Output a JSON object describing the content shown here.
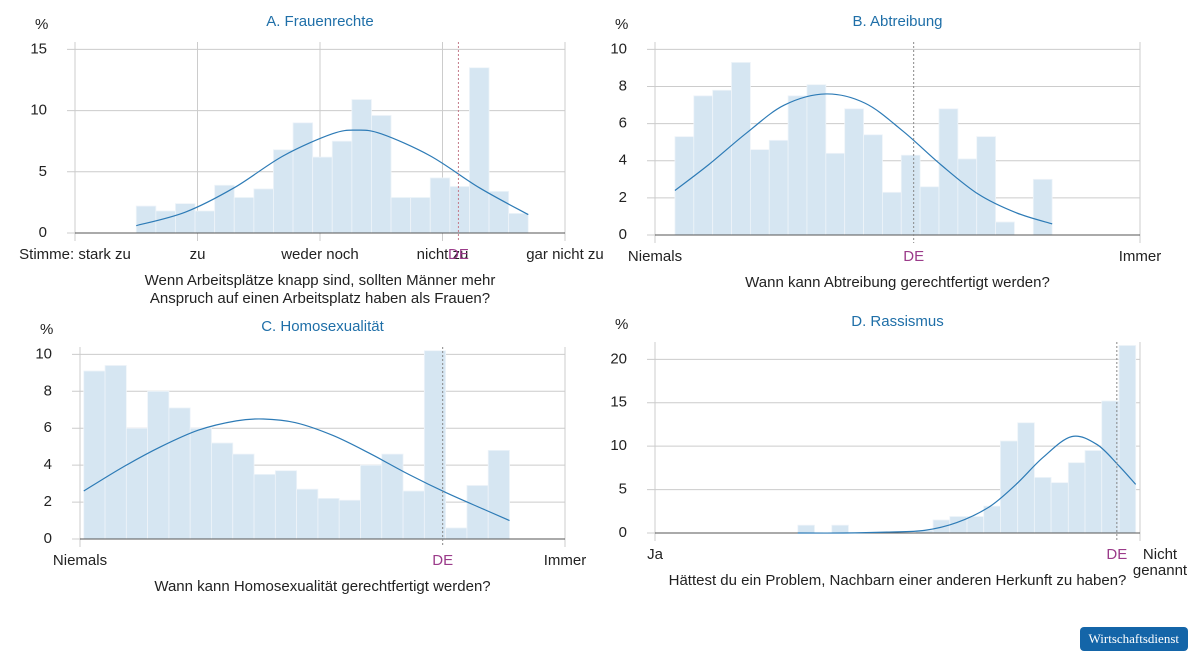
{
  "chart_data": [
    {
      "type": "histogram",
      "title": "A. Frauenrechte",
      "y_label": "%",
      "xlabel": [
        "Wenn Arbeitsplätze knapp sind, sollten Männer mehr",
        "Anspruch auf einen Arbeitsplatz haben als Frauen?"
      ],
      "xlim": [
        0,
        4
      ],
      "xticks": [
        {
          "value": 0,
          "label": "Stimme: stark zu"
        },
        {
          "value": 1,
          "label": "zu"
        },
        {
          "value": 2,
          "label": "weder noch"
        },
        {
          "value": 3,
          "label": "nicht zu"
        },
        {
          "value": 4,
          "label": "gar nicht zu"
        }
      ],
      "ylim": [
        0,
        15.6
      ],
      "yticks": [
        0,
        5,
        10,
        15
      ],
      "bins": [
        0.5,
        0.66,
        0.82,
        0.98,
        1.14,
        1.3,
        1.46,
        1.62,
        1.78,
        1.94,
        2.1,
        2.26,
        2.42,
        2.58,
        2.74,
        2.9,
        3.06,
        3.22,
        3.38,
        3.54,
        3.7
      ],
      "values": [
        2.2,
        1.8,
        2.4,
        1.8,
        3.9,
        2.9,
        3.6,
        6.8,
        9.0,
        6.2,
        7.5,
        10.9,
        9.6,
        2.9,
        2.9,
        4.5,
        3.8,
        13.5,
        3.4,
        1.6
      ],
      "curve": {
        "x": [
          0.5,
          0.9,
          1.3,
          1.7,
          2.1,
          2.3,
          2.5,
          2.9,
          3.3,
          3.7
        ],
        "values": [
          0.6,
          1.7,
          3.7,
          6.3,
          8.1,
          8.4,
          8.1,
          6.3,
          3.7,
          1.5
        ]
      },
      "marker": {
        "value": 3.13,
        "label": "DE",
        "color": "#c47a8a"
      },
      "color": "#d6e6f2",
      "curve_color": "#2d7bb6",
      "grid": true
    },
    {
      "type": "histogram",
      "title": "B. Abtreibung",
      "y_label": "%",
      "xlabel": [
        "Wann kann Abtreibung gerechtfertigt werden?"
      ],
      "xlim": [
        1,
        10
      ],
      "xticks": [
        {
          "value": 1,
          "label": "Niemals"
        },
        {
          "value": 10,
          "label": "Immer"
        }
      ],
      "ylim": [
        0,
        10.4
      ],
      "yticks": [
        0,
        2,
        4,
        6,
        8,
        10
      ],
      "bins": [
        1.37,
        1.72,
        2.07,
        2.42,
        2.77,
        3.12,
        3.47,
        3.82,
        4.17,
        4.52,
        4.87,
        5.22,
        5.57,
        5.92,
        6.27,
        6.62,
        6.97,
        7.32,
        7.67,
        8.02,
        8.37
      ],
      "values": [
        5.3,
        7.5,
        7.8,
        9.3,
        4.6,
        5.1,
        7.5,
        8.1,
        4.4,
        6.8,
        5.4,
        2.3,
        4.3,
        2.6,
        6.8,
        4.1,
        5.3,
        0.7,
        0,
        3.0
      ],
      "curve": {
        "x": [
          1.37,
          2.0,
          2.7,
          3.4,
          4.17,
          4.9,
          5.6,
          6.3,
          7.0,
          7.7,
          8.37
        ],
        "values": [
          2.4,
          3.8,
          5.5,
          7.0,
          7.6,
          7.1,
          5.6,
          3.8,
          2.2,
          1.2,
          0.6
        ]
      },
      "marker": {
        "value": 5.8,
        "label": "DE",
        "color": "#888"
      },
      "color": "#d6e6f2",
      "curve_color": "#2d7bb6",
      "grid": true
    },
    {
      "type": "histogram",
      "title": "C. Homosexualität",
      "y_label": "%",
      "xlabel": [
        "Wann kann Homosexualität gerechtfertigt werden?"
      ],
      "xlim": [
        1,
        10
      ],
      "xticks": [
        {
          "value": 1,
          "label": "Niemals"
        },
        {
          "value": 10,
          "label": "Immer"
        }
      ],
      "ylim": [
        0,
        10.4
      ],
      "yticks": [
        0,
        2,
        4,
        6,
        8,
        10
      ],
      "bins": [
        1.07,
        1.465,
        1.86,
        2.255,
        2.65,
        3.045,
        3.44,
        3.835,
        4.23,
        4.625,
        5.02,
        5.415,
        5.81,
        6.205,
        6.6,
        6.995,
        7.39,
        7.785,
        8.18,
        8.575,
        8.97
      ],
      "values": [
        9.1,
        9.4,
        6.0,
        8.0,
        7.1,
        6.0,
        5.2,
        4.6,
        3.5,
        3.7,
        2.7,
        2.2,
        2.1,
        4.0,
        4.6,
        2.6,
        10.2,
        0.6,
        2.9,
        4.8
      ],
      "curve": {
        "x": [
          1.07,
          1.8,
          2.5,
          3.2,
          3.9,
          4.4,
          5.0,
          5.7,
          6.4,
          7.1,
          7.8,
          8.5,
          8.97
        ],
        "values": [
          2.6,
          3.9,
          5.0,
          5.9,
          6.4,
          6.5,
          6.3,
          5.6,
          4.6,
          3.5,
          2.5,
          1.6,
          1.0
        ]
      },
      "marker": {
        "value": 7.73,
        "label": "DE",
        "color": "#888"
      },
      "color": "#d6e6f2",
      "curve_color": "#2d7bb6",
      "grid": true
    },
    {
      "type": "histogram",
      "title": "D. Rassismus",
      "y_label": "%",
      "xlabel": [
        "Hättest du ein Problem, Nachbarn einer anderen Herkunft zu haben?"
      ],
      "xlim": [
        1,
        10
      ],
      "xticks": [
        {
          "value": 1,
          "label": "Ja"
        },
        {
          "value": 10,
          "label": [
            "Nicht",
            "genannt"
          ]
        }
      ],
      "ylim": [
        0,
        22
      ],
      "yticks": [
        0,
        5,
        10,
        15,
        20
      ],
      "bins": [
        3.65,
        3.96,
        4.28,
        4.59,
        4.9,
        5.22,
        5.53,
        5.84,
        6.16,
        6.47,
        6.79,
        7.1,
        7.41,
        7.73,
        8.04,
        8.35,
        8.67,
        8.98,
        9.29,
        9.61,
        9.92
      ],
      "values": [
        0.9,
        0,
        0.9,
        0,
        0,
        0,
        0,
        0.3,
        1.5,
        1.9,
        1.9,
        3.1,
        10.6,
        12.7,
        6.4,
        5.8,
        8.1,
        9.5,
        15.2,
        21.6
      ],
      "curve": {
        "x": [
          3.65,
          4.5,
          5.3,
          6.0,
          6.6,
          7.2,
          7.7,
          8.2,
          8.73,
          9.2,
          9.6,
          9.92
        ],
        "values": [
          0,
          0,
          0.1,
          0.3,
          1.2,
          3.0,
          5.6,
          8.7,
          11.1,
          10.2,
          7.8,
          5.6
        ]
      },
      "marker": {
        "value": 9.57,
        "label": "DE",
        "color": "#888"
      },
      "color": "#d6e6f2",
      "curve_color": "#2d7bb6",
      "grid": true
    }
  ],
  "badge": "Wirtschaftsdienst"
}
